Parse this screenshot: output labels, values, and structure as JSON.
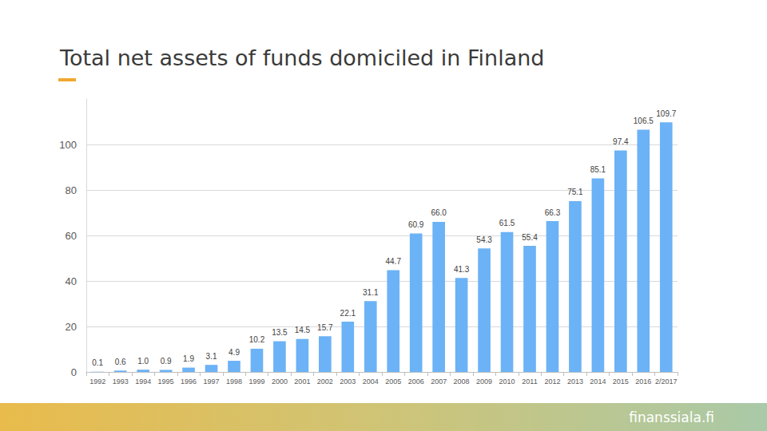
{
  "chart_data": {
    "type": "bar",
    "title": "Total net assets of funds domiciled in Finland",
    "source": "finanssiala.fi",
    "categories": [
      "1992",
      "1993",
      "1994",
      "1995",
      "1996",
      "1997",
      "1998",
      "1999",
      "2000",
      "2001",
      "2002",
      "2003",
      "2004",
      "2005",
      "2006",
      "2007",
      "2008",
      "2009",
      "2010",
      "2011",
      "2012",
      "2013",
      "2014",
      "2015",
      "2016",
      "2/2017"
    ],
    "values": [
      0.1,
      0.6,
      1.0,
      0.9,
      1.9,
      3.1,
      4.9,
      10.2,
      13.5,
      14.5,
      15.7,
      22.1,
      31.1,
      44.7,
      60.9,
      66.0,
      41.3,
      54.3,
      61.5,
      55.4,
      66.3,
      75.1,
      85.1,
      97.4,
      106.5,
      109.7
    ],
    "value_labels": [
      "0.1",
      "0.6",
      "1.0",
      "0.9",
      "1.9",
      "3.1",
      "4.9",
      "10.2",
      "13.5",
      "14.5",
      "15.7",
      "22.1",
      "31.1",
      "44.7",
      "60.9",
      "66.0",
      "41.3",
      "54.3",
      "61.5",
      "55.4",
      "66.3",
      "75.1",
      "85.1",
      "97.4",
      "106.5",
      "109.7"
    ],
    "color": "#6cb2f6",
    "ylim": [
      0,
      120
    ],
    "yticks": [
      0,
      20,
      40,
      60,
      80,
      100
    ],
    "grid": true,
    "data_labels": true
  }
}
